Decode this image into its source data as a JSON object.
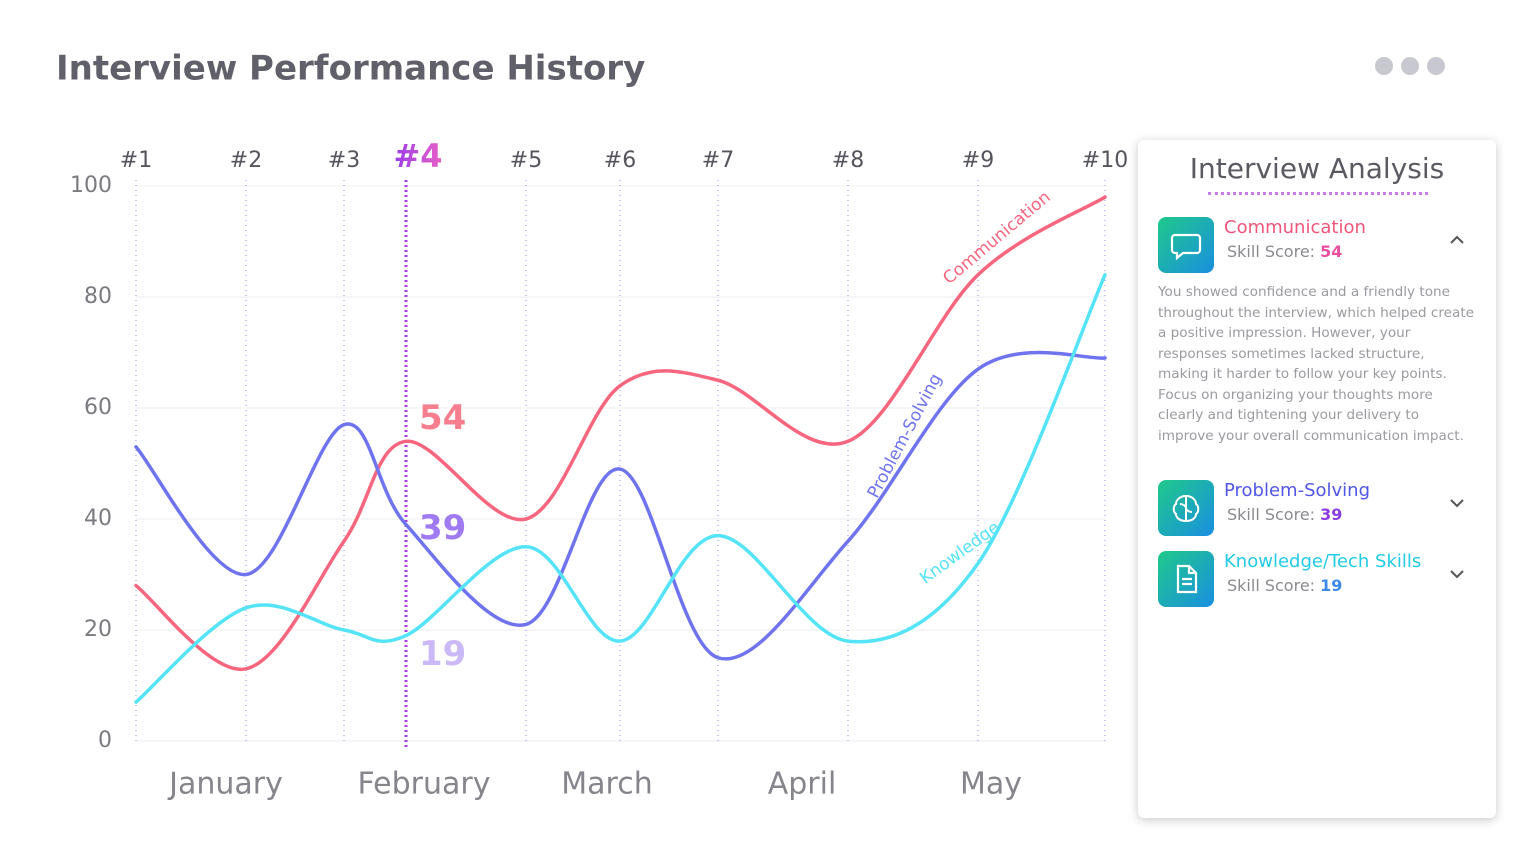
{
  "title": "Interview Performance History",
  "chart_data": {
    "type": "line",
    "categories": [
      "#1",
      "#2",
      "#3",
      "#4",
      "#5",
      "#6",
      "#7",
      "#8",
      "#9",
      "#10"
    ],
    "months": [
      "January",
      "February",
      "March",
      "April",
      "May"
    ],
    "series": [
      {
        "name": "Communication",
        "color": "#f7667f",
        "values": [
          28,
          13,
          36,
          54,
          40,
          64,
          65,
          54,
          84,
          98
        ]
      },
      {
        "name": "Problem-Solving",
        "color": "#6f74ee",
        "values": [
          53,
          30,
          57,
          39,
          21,
          49,
          15,
          36,
          67,
          69
        ]
      },
      {
        "name": "Knowledge",
        "color": "#55e3f7",
        "values": [
          7,
          24,
          20,
          19,
          35,
          18,
          37,
          18,
          32,
          84
        ]
      }
    ],
    "highlight_index": 3,
    "ylim": [
      0,
      100
    ],
    "yticks": [
      0,
      20,
      40,
      60,
      80,
      100
    ],
    "grid": true
  },
  "panel": {
    "title": "Interview Analysis",
    "score_label": "Skill Score:",
    "items": [
      {
        "name": "Communication",
        "color": "#f0557a",
        "text": "You showed confidence and a friendly tone throughout the interview, which helped create a positive impression. However, your responses sometimes lacked structure, making it harder to follow your key points. Focus on organizing your thoughts more clearly and tightening your delivery to improve your overall communication impact."
      },
      {
        "name": "Problem-Solving",
        "color": "#5156e6"
      },
      {
        "name": "Knowledge/Tech Skills",
        "color": "#22cbe6"
      }
    ]
  }
}
